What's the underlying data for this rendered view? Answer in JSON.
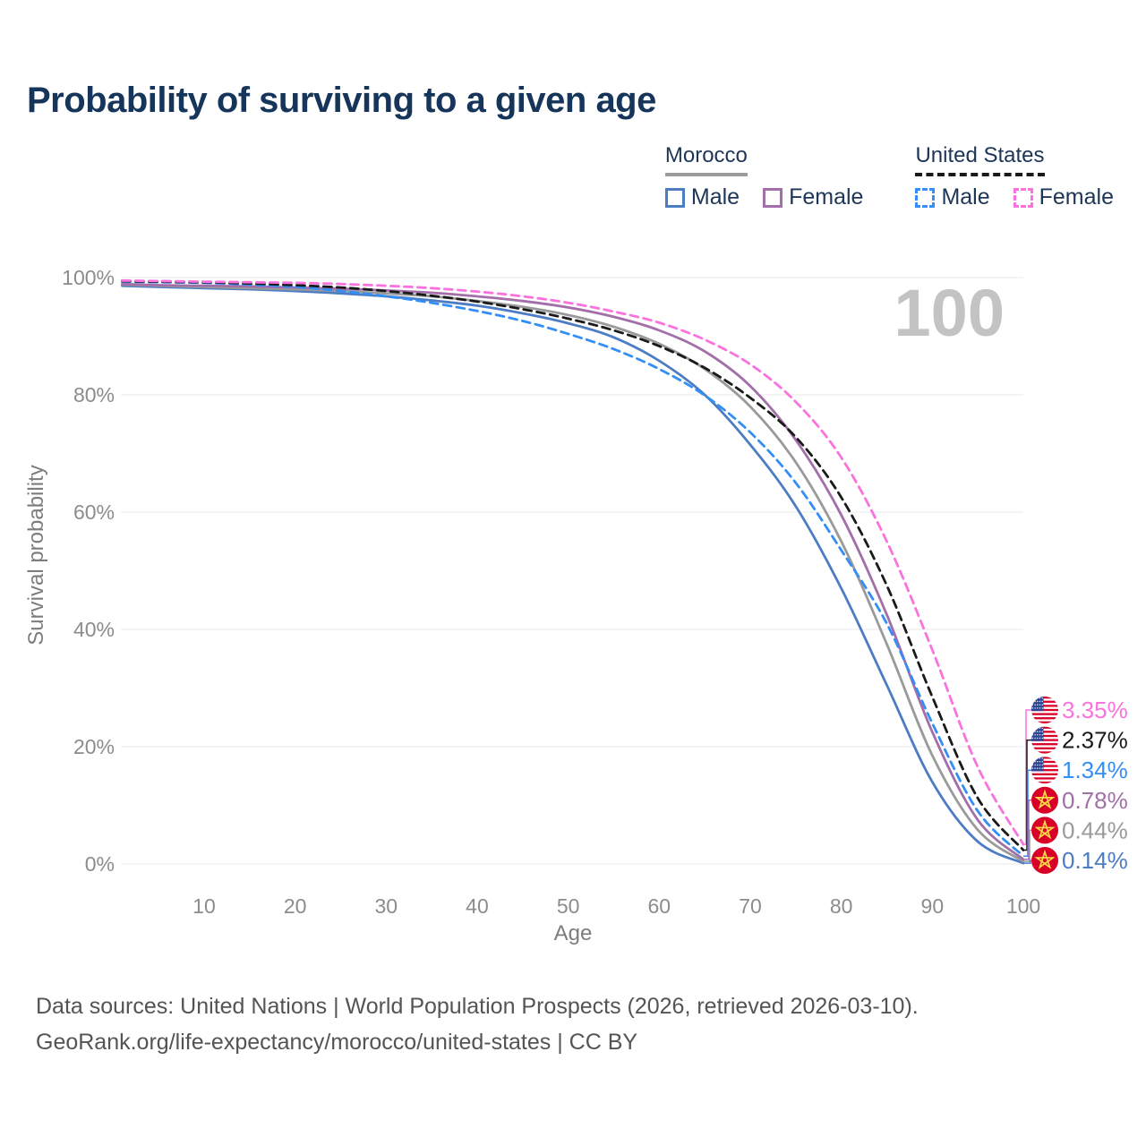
{
  "title": "Probability of surviving to a given age",
  "watermark": "100",
  "legend": {
    "groups": [
      {
        "id": "morocco",
        "name": "Morocco",
        "line_style": "solid",
        "color": "#9a9a9a",
        "items": [
          {
            "label": "Male",
            "color": "#4b7cc4"
          },
          {
            "label": "Female",
            "color": "#a26fa8"
          }
        ]
      },
      {
        "id": "united-states",
        "name": "United States",
        "line_style": "dashed",
        "color": "#1a1a1a",
        "items": [
          {
            "label": "Male",
            "color": "#338ef5"
          },
          {
            "label": "Female",
            "color": "#f972dd"
          }
        ]
      }
    ]
  },
  "chart_data": {
    "type": "line",
    "title": "Probability of surviving to a given age",
    "xlabel": "Age",
    "ylabel": "Survival probability",
    "xlim": [
      0,
      100
    ],
    "ylim": [
      0,
      100
    ],
    "grid": "horizontal",
    "xticks": [
      10,
      20,
      30,
      40,
      50,
      60,
      70,
      80,
      90,
      100
    ],
    "yticks": [
      "0%",
      "20%",
      "40%",
      "60%",
      "80%",
      "100%"
    ],
    "x": [
      1,
      5,
      10,
      15,
      20,
      25,
      30,
      35,
      40,
      45,
      50,
      55,
      60,
      65,
      70,
      75,
      80,
      85,
      90,
      95,
      100
    ],
    "series": [
      {
        "name": "United States Female",
        "country": "United States",
        "sex": "Female",
        "flag": "us",
        "color": "#f972dd",
        "dashed": true,
        "end_label": "3.35%",
        "values": [
          99.5,
          99.4,
          99.3,
          99.2,
          99.1,
          98.9,
          98.6,
          98.2,
          97.6,
          96.8,
          95.7,
          94.2,
          92.3,
          89.4,
          85.2,
          78.8,
          69.3,
          55.0,
          36.5,
          16.5,
          3.35
        ]
      },
      {
        "name": "United States Both sexes",
        "country": "United States",
        "sex": "Both",
        "flag": "us",
        "color": "#1a1a1a",
        "dashed": true,
        "end_label": "2.37%",
        "values": [
          99.4,
          99.3,
          99.2,
          99.0,
          98.7,
          98.3,
          97.7,
          96.9,
          95.9,
          94.6,
          93.0,
          91.0,
          88.3,
          84.6,
          79.5,
          72.8,
          62.5,
          47.5,
          28.5,
          11.2,
          2.37
        ]
      },
      {
        "name": "United States Male",
        "country": "United States",
        "sex": "Male",
        "flag": "us",
        "color": "#338ef5",
        "dashed": true,
        "end_label": "1.34%",
        "values": [
          99.3,
          99.2,
          99.1,
          98.8,
          98.4,
          97.7,
          96.8,
          95.7,
          94.3,
          92.6,
          90.4,
          87.8,
          84.4,
          79.9,
          73.6,
          65.0,
          53.5,
          41.0,
          24.0,
          9.0,
          1.34
        ]
      },
      {
        "name": "Morocco Female",
        "country": "Morocco",
        "sex": "Female",
        "flag": "ma",
        "color": "#a26fa8",
        "dashed": false,
        "end_label": "0.78%",
        "values": [
          98.9,
          98.7,
          98.6,
          98.5,
          98.3,
          98.1,
          97.8,
          97.4,
          96.8,
          96.0,
          94.9,
          93.3,
          91.0,
          87.4,
          81.5,
          72.3,
          59.5,
          42.5,
          22.5,
          7.5,
          0.78
        ]
      },
      {
        "name": "Morocco Both sexes",
        "country": "Morocco",
        "sex": "Both",
        "flag": "ma",
        "color": "#9a9a9a",
        "dashed": false,
        "end_label": "0.44%",
        "values": [
          98.8,
          98.6,
          98.4,
          98.2,
          98.0,
          97.7,
          97.3,
          96.8,
          96.0,
          95.0,
          93.6,
          91.6,
          88.7,
          84.4,
          78.0,
          68.5,
          55.0,
          37.5,
          18.5,
          5.8,
          0.44
        ]
      },
      {
        "name": "Morocco Male",
        "country": "Morocco",
        "sex": "Male",
        "flag": "ma",
        "color": "#4b7cc4",
        "dashed": false,
        "end_label": "0.14%",
        "values": [
          98.6,
          98.4,
          98.2,
          98.0,
          97.7,
          97.3,
          96.8,
          96.1,
          95.2,
          93.9,
          92.2,
          89.8,
          85.8,
          80.0,
          71.5,
          61.0,
          47.0,
          30.5,
          14.0,
          3.8,
          0.14
        ]
      }
    ],
    "flag_colors": {
      "us_red": "#d80027",
      "us_blue": "#2e4593",
      "us_white": "#ffffff",
      "ma_red": "#d80027",
      "ma_star": "#ffda44"
    }
  },
  "footer": {
    "line1": "Data sources: United Nations | World Population Prospects (2026, retrieved 2026-03-10).",
    "line2": "GeoRank.org/life-expectancy/morocco/united-states | CC BY"
  }
}
